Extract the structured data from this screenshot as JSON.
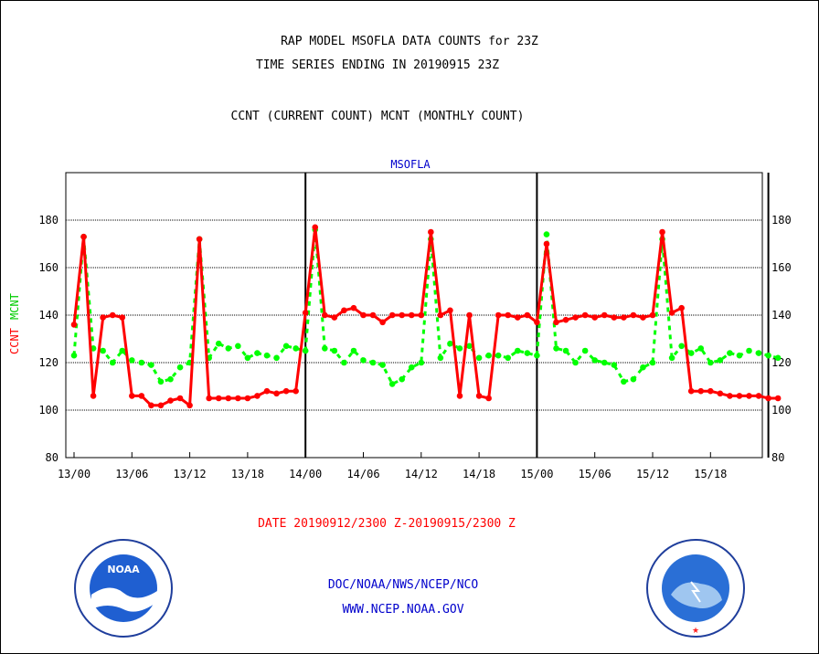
{
  "header": {
    "title_line1": "RAP MODEL MSOFLA DATA COUNTS for 23Z",
    "title_line2": "TIME SERIES ENDING IN 20190915 23Z",
    "subtitle": "CCNT (CURRENT COUNT) MCNT (MONTHLY COUNT)"
  },
  "footer": {
    "date_range": "DATE 20190912/2300 Z-20190915/2300 Z",
    "org": "DOC/NOAA/NWS/NCEP/NCO",
    "url": "WWW.NCEP.NOAA.GOV"
  },
  "logos": {
    "noaa_label": "NOAA",
    "noaa_ring_text": "NATIONAL OCEANIC AND ATMOSPHERIC ADMINISTRATION · U.S. DEPARTMENT OF COMMERCE",
    "nws_ring_text": "NATIONAL WEATHER SERVICE"
  },
  "colors": {
    "ccnt": "#ff0000",
    "mcnt": "#00ff00",
    "station": "#0000cc",
    "footer_blue": "#0000cc",
    "date_red": "#ff0000"
  },
  "chart_data": {
    "type": "line",
    "title": "MSOFLA",
    "ylabel_ccnt": "CCNT",
    "ylabel_mcnt": "MCNT",
    "ylim": [
      80,
      200
    ],
    "yticks": [
      80,
      100,
      120,
      140,
      160,
      180
    ],
    "xticks": [
      "13/00",
      "13/06",
      "13/12",
      "13/18",
      "14/00",
      "14/06",
      "14/12",
      "14/18",
      "15/00",
      "15/06",
      "15/12",
      "15/18"
    ],
    "grid": true,
    "series": [
      {
        "name": "CCNT",
        "values": [
          136,
          173,
          106,
          139,
          140,
          139,
          106,
          106,
          102,
          102,
          104,
          105,
          102,
          172,
          105,
          105,
          105,
          105,
          105,
          106,
          108,
          107,
          108,
          108,
          141,
          177,
          140,
          139,
          142,
          143,
          140,
          140,
          137,
          140,
          140,
          140,
          140,
          175,
          140,
          142,
          106,
          140,
          106,
          105,
          140,
          140,
          139,
          140,
          137,
          170,
          137,
          138,
          139,
          140,
          139,
          140,
          139,
          139,
          140,
          139,
          140,
          175,
          141,
          143,
          108,
          108,
          108,
          107,
          106,
          106,
          106,
          106,
          105,
          105
        ]
      },
      {
        "name": "MCNT",
        "values": [
          123,
          173,
          126,
          125,
          120,
          125,
          121,
          120,
          119,
          112,
          113,
          118,
          120,
          172,
          122,
          128,
          126,
          127,
          122,
          124,
          123,
          122,
          127,
          126,
          125,
          176,
          126,
          125,
          120,
          125,
          121,
          120,
          119,
          111,
          113,
          118,
          120,
          172,
          122,
          128,
          126,
          127,
          122,
          123,
          123,
          122,
          125,
          124,
          123,
          174,
          126,
          125,
          120,
          125,
          121,
          120,
          119,
          112,
          113,
          118,
          120,
          172,
          122,
          127,
          124,
          126,
          120,
          121,
          124,
          123,
          125,
          124,
          123,
          122
        ]
      }
    ]
  }
}
